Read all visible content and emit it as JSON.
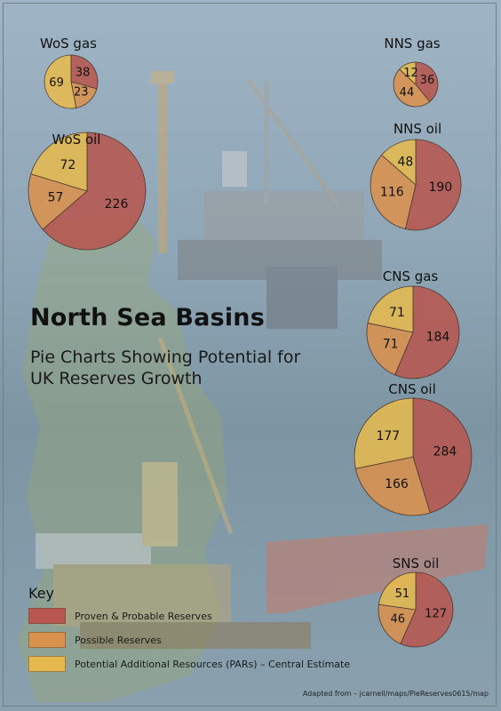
{
  "title": "North Sea Basins",
  "subtitle": "Pie Charts Showing Potential for UK Reserves Growth",
  "key": {
    "title": "Key",
    "items": [
      {
        "label": "Proven & Probable Reserves",
        "color": "#b7574f"
      },
      {
        "label": "Possible Reserves",
        "color": "#d9924e"
      },
      {
        "label": "Potential Additional Resources (PARs) – Central Estimate",
        "color": "#e6b94e"
      }
    ]
  },
  "credit": "Adapted from – jcarnell/maps/PieReserves0615/map",
  "chart_data": [
    {
      "type": "pie",
      "title": "WoS gas",
      "categories": [
        "Proven & Probable Reserves",
        "Possible Reserves",
        "Potential Additional Resources (PARs) – Central Estimate"
      ],
      "values": [
        38,
        23,
        69
      ]
    },
    {
      "type": "pie",
      "title": "WoS oil",
      "categories": [
        "Proven & Probable Reserves",
        "Possible Reserves",
        "Potential Additional Resources (PARs) – Central Estimate"
      ],
      "values": [
        226,
        57,
        72
      ]
    },
    {
      "type": "pie",
      "title": "NNS gas",
      "categories": [
        "Proven & Probable Reserves",
        "Possible Reserves",
        "Potential Additional Resources (PARs) – Central Estimate"
      ],
      "values": [
        36,
        44,
        12
      ]
    },
    {
      "type": "pie",
      "title": "NNS oil",
      "categories": [
        "Proven & Probable Reserves",
        "Possible Reserves",
        "Potential Additional Resources (PARs) – Central Estimate"
      ],
      "values": [
        190,
        116,
        48
      ]
    },
    {
      "type": "pie",
      "title": "CNS gas",
      "categories": [
        "Proven & Probable Reserves",
        "Possible Reserves",
        "Potential Additional Resources (PARs) – Central Estimate"
      ],
      "values": [
        184,
        71,
        71
      ]
    },
    {
      "type": "pie",
      "title": "CNS oil",
      "categories": [
        "Proven & Probable Reserves",
        "Possible Reserves",
        "Potential Additional Resources (PARs) – Central Estimate"
      ],
      "values": [
        284,
        166,
        177
      ]
    },
    {
      "type": "pie",
      "title": "SNS oil",
      "categories": [
        "Proven & Probable Reserves",
        "Possible Reserves",
        "Potential Additional Resources (PARs) – Central Estimate"
      ],
      "values": [
        127,
        46,
        51
      ]
    }
  ]
}
